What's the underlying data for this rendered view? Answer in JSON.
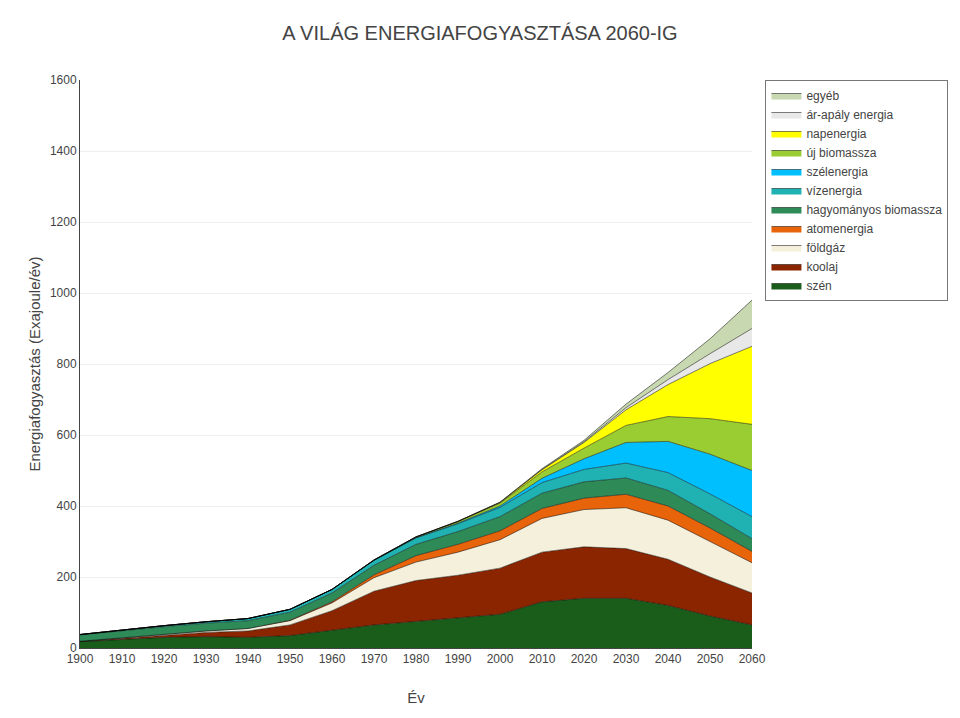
{
  "chart_data": {
    "type": "area",
    "stacked": true,
    "title": "A VILÁG ENERGIAFOGYASZTÁSA 2060-IG",
    "xlabel": "Év",
    "ylabel": "Energiafogyasztás (Exajoule/év)",
    "x": [
      1900,
      1910,
      1920,
      1930,
      1940,
      1950,
      1960,
      1970,
      1980,
      1990,
      2000,
      2010,
      2020,
      2030,
      2040,
      2050,
      2060
    ],
    "series": [
      {
        "name": "szén",
        "color": "#1a5c1a",
        "values": [
          18,
          25,
          30,
          32,
          30,
          35,
          50,
          65,
          75,
          85,
          95,
          130,
          140,
          140,
          120,
          90,
          65
        ]
      },
      {
        "name": "koolaj",
        "color": "#8b2500",
        "values": [
          1,
          3,
          7,
          12,
          18,
          30,
          55,
          95,
          115,
          120,
          130,
          140,
          145,
          140,
          130,
          110,
          90
        ]
      },
      {
        "name": "földgáz",
        "color": "#f5f0dc",
        "values": [
          0,
          1,
          2,
          4,
          7,
          12,
          22,
          38,
          52,
          65,
          80,
          95,
          105,
          115,
          110,
          100,
          85
        ]
      },
      {
        "name": "atomenergia",
        "color": "#e8640a",
        "values": [
          0,
          0,
          0,
          0,
          0,
          1,
          3,
          8,
          18,
          22,
          25,
          28,
          32,
          38,
          40,
          38,
          32
        ]
      },
      {
        "name": "hagyományos biomassza",
        "color": "#2e8b57",
        "values": [
          18,
          20,
          21,
          22,
          22,
          23,
          25,
          27,
          32,
          36,
          40,
          43,
          46,
          46,
          44,
          40,
          36
        ]
      },
      {
        "name": "vízenergia",
        "color": "#20b2b2",
        "values": [
          1,
          2,
          3,
          4,
          6,
          8,
          10,
          14,
          18,
          22,
          26,
          30,
          35,
          42,
          50,
          56,
          62
        ]
      },
      {
        "name": "szélenergia",
        "color": "#00bfff",
        "values": [
          0,
          0,
          0,
          0,
          0,
          0,
          0,
          0,
          1,
          2,
          4,
          12,
          30,
          58,
          88,
          112,
          130
        ]
      },
      {
        "name": "új biomassza",
        "color": "#9acd32",
        "values": [
          0,
          0,
          0,
          0,
          0,
          0,
          0,
          1,
          2,
          4,
          8,
          18,
          30,
          48,
          70,
          100,
          130
        ]
      },
      {
        "name": "napenergia",
        "color": "#ffff00",
        "values": [
          0,
          0,
          0,
          0,
          0,
          0,
          0,
          0,
          0,
          1,
          2,
          6,
          16,
          44,
          90,
          155,
          220
        ]
      },
      {
        "name": "ár-apály energia",
        "color": "#e8e8e8",
        "values": [
          0,
          0,
          0,
          0,
          0,
          0,
          0,
          0,
          0,
          0,
          0,
          1,
          2,
          6,
          14,
          28,
          50
        ]
      },
      {
        "name": "egyéb",
        "color": "#c8d8b0",
        "values": [
          0,
          0,
          0,
          0,
          0,
          0,
          0,
          0,
          0,
          0,
          1,
          2,
          4,
          10,
          20,
          42,
          80
        ]
      }
    ],
    "xlim": [
      1900,
      2060
    ],
    "xticks": [
      1900,
      1910,
      1920,
      1930,
      1940,
      1950,
      1960,
      1970,
      1980,
      1990,
      2000,
      2010,
      2020,
      2030,
      2040,
      2050,
      2060
    ],
    "ylim": [
      0,
      1600
    ],
    "yticks": [
      0,
      200,
      400,
      600,
      800,
      1000,
      1200,
      1400,
      1600
    ],
    "grid": "y",
    "legend": "right"
  }
}
